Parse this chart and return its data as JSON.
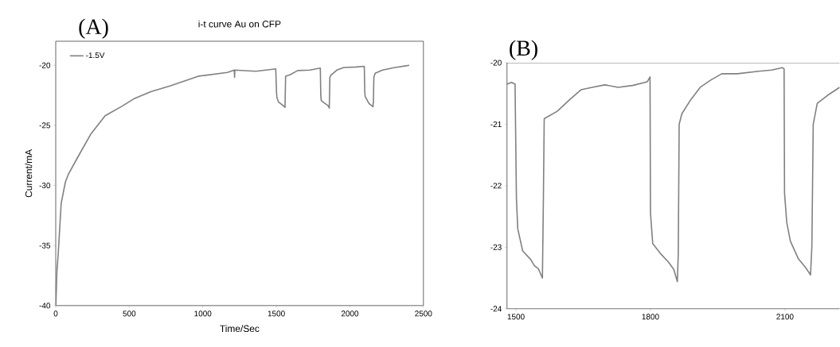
{
  "chart_data": [
    {
      "type": "line",
      "title": "i-t curve Au on CFP",
      "xlabel": "Time/Sec",
      "ylabel": "Current/mA",
      "annotations": [
        "(A)"
      ],
      "xlim": [
        0,
        2500
      ],
      "ylim": [
        -40,
        -18
      ],
      "xticks": [
        0,
        500,
        1000,
        1500,
        2000,
        2500
      ],
      "yticks": [
        -40,
        -35,
        -30,
        -25,
        -20
      ],
      "grid": false,
      "legend": "top left",
      "line_style": "solid",
      "marker": "none",
      "series": [
        {
          "name": "-1.5V",
          "color": "#808080",
          "x": [
            1,
            8,
            17,
            37,
            66,
            85,
            143,
            240,
            336,
            452,
            530,
            646,
            781,
            974,
            1167,
            1214,
            1216,
            1218,
            1361,
            1496,
            1501,
            1504,
            1515,
            1541,
            1559,
            1563,
            1592,
            1645,
            1728,
            1799,
            1802,
            1805,
            1822,
            1852,
            1860,
            1864,
            1870,
            1911,
            1959,
            2041,
            2098,
            2101,
            2104,
            2130,
            2157,
            2160,
            2163,
            2172,
            2222,
            2300,
            2404
          ],
          "values": [
            -40,
            -37.2,
            -35.7,
            -31.5,
            -29.7,
            -29.1,
            -27.8,
            -25.7,
            -24.2,
            -23.4,
            -22.8,
            -22.2,
            -21.7,
            -20.9,
            -20.6,
            -20.4,
            -21.0,
            -20.4,
            -20.5,
            -20.3,
            -22.2,
            -22.7,
            -23.06,
            -23.3,
            -23.5,
            -20.91,
            -20.79,
            -20.44,
            -20.4,
            -20.23,
            -22.44,
            -22.94,
            -23.1,
            -23.36,
            -23.56,
            -21.0,
            -20.83,
            -20.4,
            -20.18,
            -20.14,
            -20.08,
            -22.12,
            -22.6,
            -23.19,
            -23.45,
            -22.98,
            -21.0,
            -20.66,
            -20.4,
            -20.2,
            -20.0
          ]
        }
      ]
    },
    {
      "type": "line",
      "annotations": [
        "(B)"
      ],
      "xlim": [
        1480,
        2222
      ],
      "ylim": [
        -24,
        -20
      ],
      "xticks": [
        1500,
        1800,
        2100
      ],
      "yticks": [
        -24,
        -23,
        -22,
        -21,
        -20
      ],
      "grid": false,
      "line_style": "solid",
      "marker": "none",
      "series": [
        {
          "color": "#808080",
          "x": [
            1480,
            1490,
            1498,
            1501,
            1504,
            1515,
            1533,
            1541,
            1550,
            1556,
            1559,
            1561,
            1563,
            1592,
            1620,
            1645,
            1670,
            1698,
            1728,
            1760,
            1793,
            1799,
            1800,
            1805,
            1822,
            1840,
            1852,
            1860,
            1862,
            1864,
            1870,
            1890,
            1911,
            1935,
            1959,
            1994,
            2041,
            2070,
            2094,
            2098,
            2099,
            2104,
            2112,
            2130,
            2145,
            2157,
            2160,
            2163,
            2172,
            2195,
            2222
          ],
          "values": [
            -20.35,
            -20.32,
            -20.35,
            -22.2,
            -22.7,
            -23.06,
            -23.2,
            -23.3,
            -23.35,
            -23.45,
            -23.5,
            -22.33,
            -20.91,
            -20.79,
            -20.6,
            -20.44,
            -20.4,
            -20.36,
            -20.4,
            -20.37,
            -20.31,
            -20.23,
            -22.44,
            -22.94,
            -23.1,
            -23.24,
            -23.36,
            -23.56,
            -23.1,
            -21.0,
            -20.83,
            -20.6,
            -20.4,
            -20.28,
            -20.18,
            -20.18,
            -20.14,
            -20.12,
            -20.08,
            -20.1,
            -22.12,
            -22.6,
            -22.9,
            -23.19,
            -23.32,
            -23.45,
            -22.98,
            -21.0,
            -20.66,
            -20.53,
            -20.4
          ]
        }
      ]
    }
  ]
}
